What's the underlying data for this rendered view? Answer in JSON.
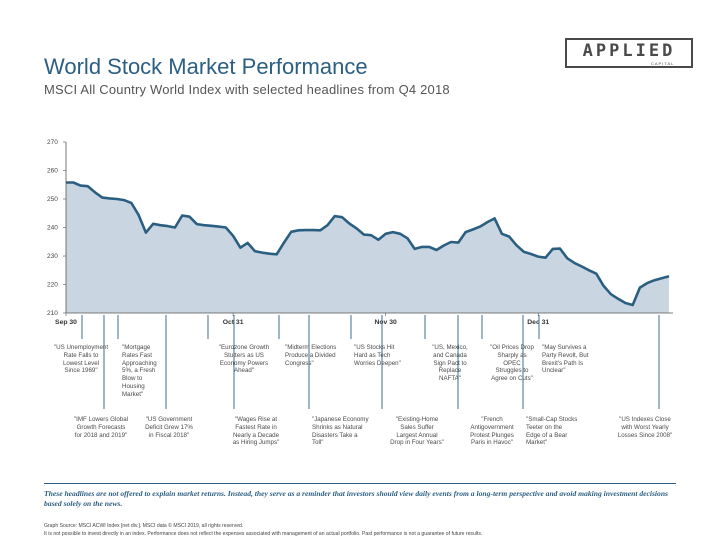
{
  "logo": {
    "word": "APPLIED",
    "sub": "CAPITAL"
  },
  "header": {
    "title": "World Stock Market Performance",
    "subtitle": "MSCI All Country World Index with selected headlines from Q4 2018"
  },
  "colors": {
    "title": "#2b5f82",
    "line": "#2b5f82",
    "area": "#c9d6e2",
    "annotation": "#2b5f82"
  },
  "chart_data": {
    "type": "area",
    "title": "",
    "xlabel": "",
    "ylabel": "",
    "ylim": [
      210,
      270
    ],
    "yticks": [
      210,
      220,
      230,
      240,
      250,
      260,
      270
    ],
    "grid": false,
    "xticks": [
      {
        "label": "Sep 30",
        "x": 0
      },
      {
        "label": "Oct 31",
        "x": 23
      },
      {
        "label": "Nov 30",
        "x": 44
      },
      {
        "label": "Dec 31",
        "x": 65
      }
    ],
    "series": [
      {
        "values": [
          255.8,
          255.8,
          254.7,
          254.5,
          252.3,
          250.5,
          250.2,
          250.0,
          249.6,
          248.6,
          244.3,
          238.2,
          241.3,
          240.8,
          240.5,
          240.0,
          244.2,
          243.8,
          241.2,
          240.8,
          240.6,
          240.3,
          240.0,
          237.1,
          232.9,
          234.6,
          231.7,
          231.2,
          230.8,
          230.6,
          234.7,
          238.5,
          239.0,
          239.1,
          239.1,
          239.0,
          240.8,
          244.0,
          243.6,
          241.4,
          239.7,
          237.5,
          237.3,
          235.7,
          237.8,
          238.4,
          237.8,
          236.2,
          232.5,
          233.2,
          233.2,
          232.1,
          233.7,
          234.9,
          234.7,
          238.4,
          239.3,
          240.3,
          241.9,
          243.2,
          237.8,
          236.8,
          233.8,
          231.5,
          230.7,
          229.8,
          229.4,
          232.5,
          232.6,
          229.2,
          227.5,
          226.3,
          225.0,
          223.8,
          219.5,
          216.6,
          215.0,
          213.5,
          212.8,
          218.9,
          220.5,
          221.5,
          222.2,
          222.9
        ]
      }
    ]
  },
  "headlines": [
    {
      "lines": [
        "\"US Unemployment",
        "Rate Falls to",
        "Lowest Level",
        "Since 1969\""
      ],
      "align": "center"
    },
    {
      "lines": [
        "\"IMF Lowers Global",
        "Growth Forecasts",
        "for 2018 and 2019\""
      ],
      "align": "center"
    },
    {
      "lines": [
        "\"Mortgage",
        "Rates Fast",
        "Approaching",
        "5%, a Fresh",
        "Blow to",
        "Housing",
        "Market\""
      ],
      "align": "left"
    },
    {
      "lines": [
        "\"US Government",
        "Deficit Grew 17%",
        "in Fiscal 2018\""
      ],
      "align": "center"
    },
    {
      "lines": [
        "\"Eurozone Growth",
        "Stutters as US",
        "Economy Powers",
        "Ahead\""
      ],
      "align": "center"
    },
    {
      "lines": [
        "\"Wages Rise at",
        "Fastest Rate in",
        "Nearly a Decade",
        "as Hiring Jumps\""
      ],
      "align": "center"
    },
    {
      "lines": [
        "\"Midterm Elections",
        "Produce a Divided",
        "Congress\""
      ],
      "align": "left"
    },
    {
      "lines": [
        "\"Japanese Economy",
        "Shrinks as Natural",
        "Disasters Take a",
        "Toll\""
      ],
      "align": "left"
    },
    {
      "lines": [
        "\"US Stocks Hit",
        "Hard as Tech",
        "Worries Deepen\""
      ],
      "align": "left"
    },
    {
      "lines": [
        "\"Existing-Home",
        "Sales Suffer",
        "Largest Annual",
        "Drop in Four Years\""
      ],
      "align": "center"
    },
    {
      "lines": [
        "\"US, Mexico,",
        "and Canada",
        "Sign Pact to",
        "Replace",
        "NAFTA\""
      ],
      "align": "center"
    },
    {
      "lines": [
        "\"French",
        "Antigovernment",
        "Protest Plunges",
        "Paris in Havoc\""
      ],
      "align": "center"
    },
    {
      "lines": [
        "\"Oil Prices Drop",
        "Sharply as",
        "OPEC",
        "Struggles to",
        "Agree on Cuts\""
      ],
      "align": "center"
    },
    {
      "lines": [
        "\"Small-Cap Stocks",
        "Teeter on the",
        "Edge of a Bear",
        "Market\""
      ],
      "align": "left"
    },
    {
      "lines": [
        "\"May Survives a",
        "Party Revolt, But",
        "Brexit's Path Is",
        "Unclear\""
      ],
      "align": "left"
    },
    {
      "lines": [
        "\"US Indexes Close",
        "with Worst Yearly",
        "Losses Since 2008\""
      ],
      "align": "center"
    }
  ],
  "footer": {
    "disclaimer": "These headlines are not offered to explain market returns. Instead, they serve as a reminder that investors should view daily events from a long-term perspective and avoid making investment decisions based solely on the news.",
    "source": "Graph Source: MSCI ACWI Index [net div.]. MSCI data © MSCI 2019, all rights reserved.",
    "note": "It is not possible to invest directly in an index. Performance does not reflect the expenses associated with management of an actual portfolio. Past performance is not a guarantee of future results."
  }
}
